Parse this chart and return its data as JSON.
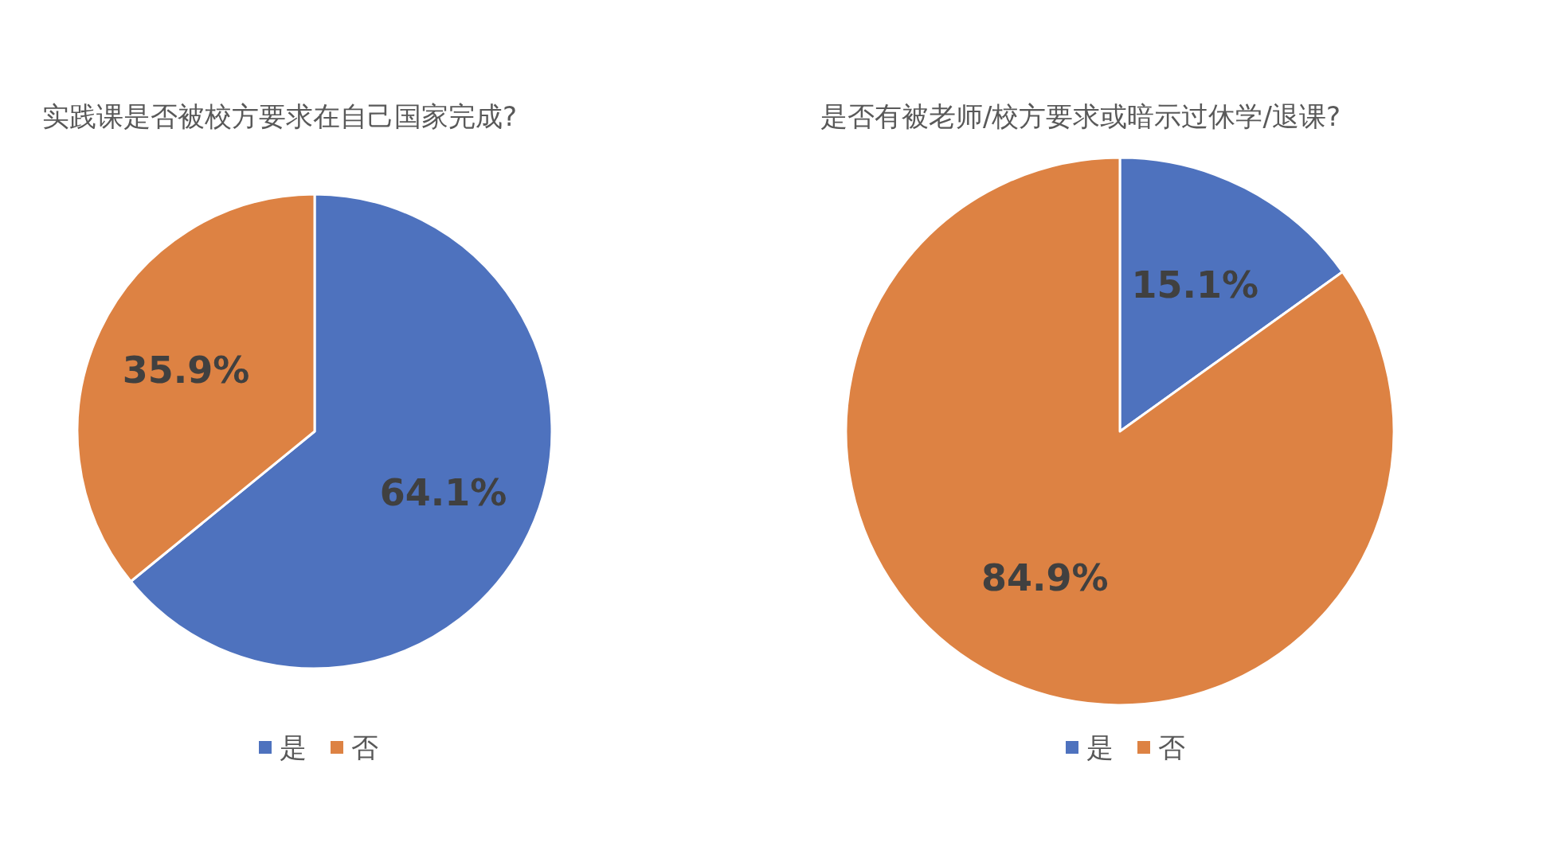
{
  "chart_data": [
    {
      "type": "pie",
      "title": "实践课是否被校方要求在自己国家完成?",
      "categories": [
        "是",
        "否"
      ],
      "values": [
        64.1,
        35.9
      ],
      "value_labels": [
        "64.1%",
        "35.9%"
      ],
      "colors": [
        "#4e72be",
        "#dd8243"
      ],
      "legend": "bottom"
    },
    {
      "type": "pie",
      "title": "是否有被老师/校方要求或暗示过休学/退课?",
      "categories": [
        "是",
        "否"
      ],
      "values": [
        15.1,
        84.9
      ],
      "value_labels": [
        "15.1%",
        "84.9%"
      ],
      "colors": [
        "#4e72be",
        "#dd8243"
      ],
      "legend": "bottom"
    }
  ]
}
